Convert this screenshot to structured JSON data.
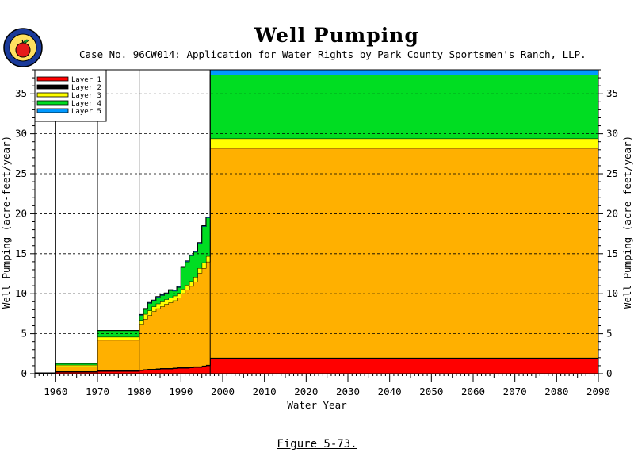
{
  "title": "Well Pumping",
  "subtitle": "Case No. 96CW014: Application for Water Rights by Park County Sportsmen's Ranch, LLP.",
  "figure_caption": "Figure 5-73.",
  "logo": "apple-seal-logo",
  "colors": {
    "layer1": "#ff0000",
    "layer2": "#000000",
    "layer3": "#ffb000",
    "layer3_band": "#ffff00",
    "layer4": "#00dd22",
    "layer5": "#0099ff",
    "grid": "#000000"
  },
  "chart_data": {
    "type": "area",
    "stacked": true,
    "step": true,
    "title": "Well Pumping",
    "xlabel": "Water Year",
    "ylabel": "Well Pumping (acre-feet/year)",
    "xlim": [
      1955,
      2090
    ],
    "ylim": [
      0,
      38
    ],
    "x_ticks": [
      1960,
      1970,
      1980,
      1990,
      2000,
      2010,
      2020,
      2030,
      2040,
      2050,
      2060,
      2070,
      2080,
      2090
    ],
    "y_ticks": [
      0,
      5,
      10,
      15,
      20,
      25,
      30,
      35
    ],
    "grid": "horizontal dashed",
    "legend": {
      "position": "top-left",
      "entries": [
        "Layer 1",
        "Layer 2",
        "Layer 3",
        "Layer 4",
        "Layer 5"
      ]
    },
    "vertical_lines": [
      1960,
      1970,
      1980,
      1997
    ],
    "x": [
      1955,
      1960,
      1970,
      1980,
      1981,
      1982,
      1983,
      1984,
      1985,
      1986,
      1987,
      1988,
      1989,
      1990,
      1991,
      1992,
      1993,
      1994,
      1995,
      1996,
      1997,
      2090
    ],
    "series": [
      {
        "name": "Layer 1",
        "values": [
          0.1,
          0.2,
          0.3,
          0.4,
          0.45,
          0.5,
          0.5,
          0.55,
          0.6,
          0.6,
          0.6,
          0.65,
          0.7,
          0.7,
          0.7,
          0.75,
          0.8,
          0.8,
          0.9,
          1.0,
          1.9,
          1.9
        ]
      },
      {
        "name": "Layer 2",
        "values": [
          0,
          0.1,
          0.1,
          0.1,
          0.1,
          0.1,
          0.1,
          0.1,
          0.1,
          0.1,
          0.1,
          0.1,
          0.1,
          0.1,
          0.1,
          0.1,
          0.1,
          0.1,
          0.1,
          0.1,
          0.1,
          0.1
        ]
      },
      {
        "name": "Layer 3",
        "values": [
          0,
          0.6,
          3.8,
          5.6,
          6.3,
          6.7,
          7.2,
          7.5,
          7.7,
          8.0,
          8.2,
          8.4,
          8.7,
          9.2,
          9.7,
          10.1,
          10.6,
          11.7,
          12.2,
          12.9,
          26.2,
          26.2
        ]
      },
      {
        "name": "Layer 3 upper band",
        "values": [
          0,
          0.2,
          0.4,
          0.6,
          0.6,
          0.6,
          0.6,
          0.6,
          0.6,
          0.6,
          0.6,
          0.6,
          0.6,
          0.6,
          0.6,
          0.6,
          0.6,
          0.6,
          0.7,
          0.7,
          1.2,
          1.2
        ]
      },
      {
        "name": "Layer 4",
        "values": [
          0,
          0.2,
          0.8,
          0.6,
          0.6,
          0.9,
          0.7,
          0.8,
          0.8,
          0.7,
          0.9,
          0.6,
          0.7,
          2.7,
          2.9,
          3.2,
          3.1,
          3.1,
          4.5,
          4.8,
          8.0,
          8.0
        ]
      },
      {
        "name": "Layer 5",
        "values": [
          0,
          0,
          0,
          0.1,
          0.1,
          0.1,
          0.1,
          0.1,
          0.1,
          0.1,
          0.1,
          0.1,
          0.1,
          0.1,
          0.1,
          0.1,
          0.1,
          0.1,
          0.1,
          0.1,
          0.6,
          0.6
        ]
      }
    ]
  }
}
